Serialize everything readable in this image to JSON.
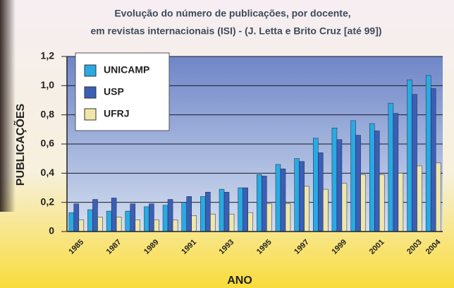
{
  "chart_data": {
    "type": "bar",
    "title": "Evolução do número de publicações, por docente,",
    "subtitle": "em revistas internacionais (ISI) - (J. Letta e Brito Cruz [até 99])",
    "x_label": "ANO",
    "y_label": "PUBLICAÇÕES",
    "categories": [
      "1985",
      null,
      "1987",
      null,
      "1989",
      null,
      "1991",
      null,
      "1993",
      null,
      "1995",
      null,
      "1997",
      null,
      "1999",
      null,
      "2001",
      null,
      "2003",
      "2004"
    ],
    "series": [
      {
        "name": "UNICAMP",
        "color": "#2aaae2",
        "values": [
          0.13,
          0.15,
          0.14,
          0.14,
          0.17,
          0.18,
          0.2,
          0.24,
          0.29,
          0.3,
          0.39,
          0.46,
          0.5,
          0.64,
          0.71,
          0.76,
          0.74,
          0.88,
          1.04,
          1.07
        ]
      },
      {
        "name": "USP",
        "color": "#3b5fb6",
        "values": [
          0.19,
          0.22,
          0.23,
          0.19,
          0.19,
          0.22,
          0.24,
          0.27,
          0.27,
          0.3,
          0.38,
          0.43,
          0.48,
          0.54,
          0.63,
          0.66,
          0.69,
          0.81,
          0.94,
          0.98
        ]
      },
      {
        "name": "UFRJ",
        "color": "#efe7a9",
        "values": [
          0.08,
          0.1,
          0.1,
          0.08,
          0.08,
          0.08,
          0.11,
          0.12,
          0.12,
          0.13,
          0.19,
          0.19,
          0.31,
          0.29,
          0.33,
          0.39,
          0.39,
          0.4,
          0.45,
          0.47
        ]
      }
    ],
    "ylim": [
      0,
      1.2
    ],
    "yticks": [
      0,
      {
        "value": 0.2,
        "label": "0,2"
      },
      {
        "value": 0.4,
        "label": "0,4"
      },
      {
        "value": 0.6,
        "label": "0,6"
      },
      {
        "value": 0.8,
        "label": "0,8"
      },
      {
        "value": 1.0,
        "label": "1,0"
      },
      {
        "value": 1.2,
        "label": "1,2"
      }
    ],
    "grid": true,
    "legend": "upper left"
  }
}
